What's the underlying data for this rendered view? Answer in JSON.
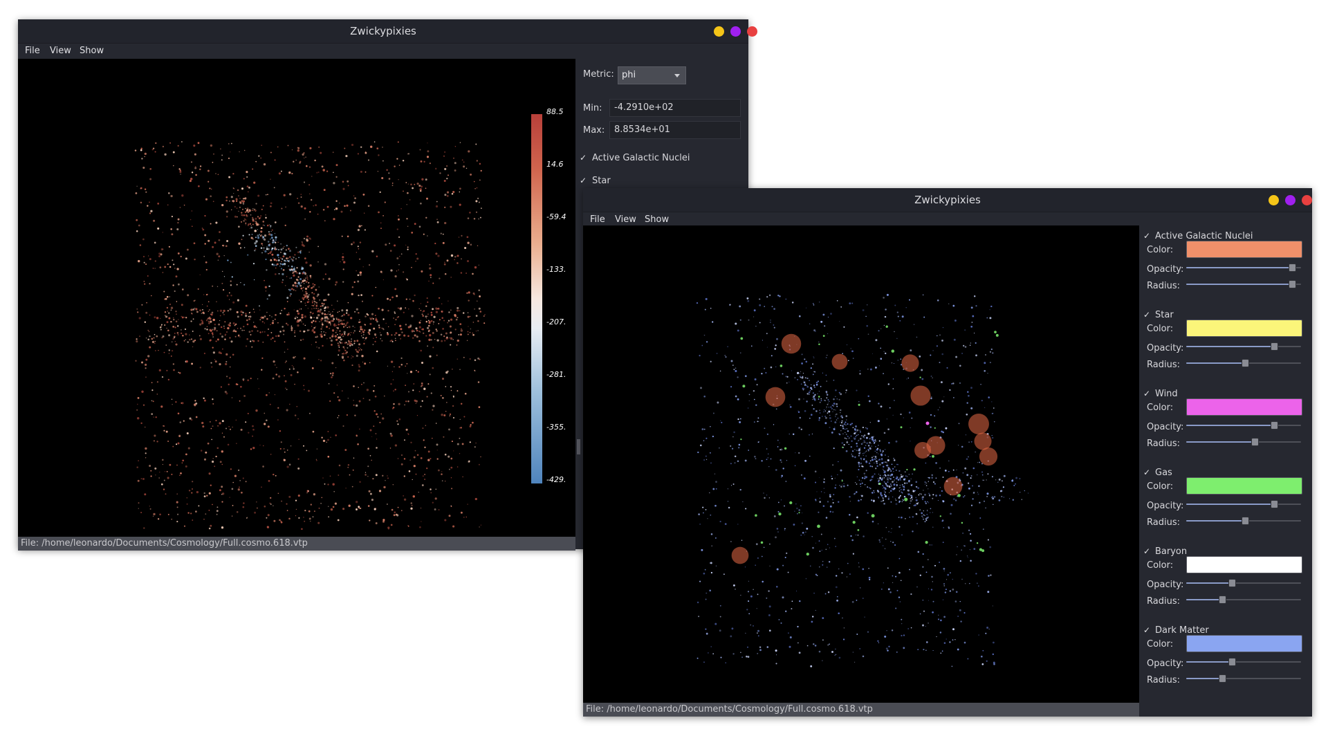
{
  "window_left": {
    "title": "Zwickypixies",
    "menu": [
      "File",
      "View",
      "Show"
    ],
    "status": "File: /home/leonardo/Documents/Cosmology/Full.cosmo.618.vtp",
    "metric_label": "Metric:",
    "metric_value": "phi",
    "min_label": "Min:",
    "min_value": "-4.2910e+02",
    "max_label": "Max:",
    "max_value": "8.8534e+01",
    "checks": [
      "Active Galactic Nuclei",
      "Star"
    ],
    "colorbar_ticks": [
      "88.5",
      "14.6",
      "-59.4",
      "-133.",
      "-207.",
      "-281.",
      "-355.",
      "-429."
    ]
  },
  "window_right": {
    "title": "Zwickypixies",
    "menu": [
      "File",
      "View",
      "Show"
    ],
    "status": "File: /home/leonardo/Documents/Cosmology/Full.cosmo.618.vtp",
    "labels": {
      "color": "Color:",
      "opacity": "Opacity:",
      "radius": "Radius:"
    },
    "types": [
      {
        "name": "Active Galactic Nuclei",
        "checked": true,
        "color": "#f0906a",
        "opacity": 0.95,
        "radius": 0.95
      },
      {
        "name": "Star",
        "checked": true,
        "color": "#fbf57a",
        "opacity": 0.78,
        "radius": 0.51
      },
      {
        "name": "Wind",
        "checked": true,
        "color": "#ec63ea",
        "opacity": 0.78,
        "radius": 0.6
      },
      {
        "name": "Gas",
        "checked": true,
        "color": "#7eee6e",
        "opacity": 0.78,
        "radius": 0.51
      },
      {
        "name": "Baryon",
        "checked": true,
        "color": "#ffffff",
        "opacity": 0.39,
        "radius": 0.3
      },
      {
        "name": "Dark Matter",
        "checked": true,
        "color": "#8aa5f1",
        "opacity": 0.39,
        "radius": 0.3
      }
    ]
  },
  "window_buttons": [
    "#f5c518",
    "#a020f0",
    "#e84040"
  ]
}
